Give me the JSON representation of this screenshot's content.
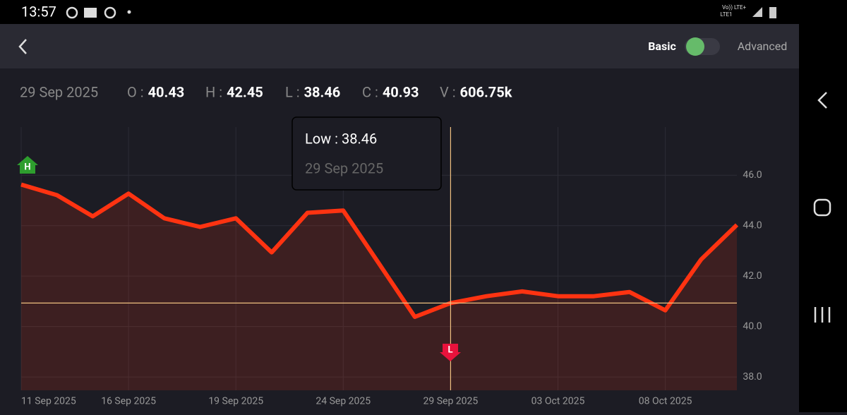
{
  "status_bar": {
    "time": "13:57",
    "network_top": "Vo)) LTE+",
    "network_bottom": "LTE1"
  },
  "header": {
    "basic": "Basic",
    "advanced": "Advanced"
  },
  "ohlc": {
    "date": "29 Sep 2025",
    "items": [
      {
        "label": "O :",
        "value": "40.43"
      },
      {
        "label": "H :",
        "value": "42.45"
      },
      {
        "label": "L :",
        "value": "38.46"
      },
      {
        "label": "C :",
        "value": "40.93"
      },
      {
        "label": "V :",
        "value": "606.75k"
      }
    ]
  },
  "tooltip": {
    "text": "Low : 38.46",
    "date": "29 Sep 2025"
  },
  "chart_data": {
    "type": "area",
    "categories": [
      "11 Sep 2025",
      null,
      null,
      "16 Sep 2025",
      null,
      null,
      "19 Sep 2025",
      null,
      null,
      "24 Sep 2025",
      null,
      null,
      "29 Sep 2025",
      null,
      null,
      "03 Oct 2025",
      null,
      null,
      "08 Oct 2025",
      null,
      null
    ],
    "values": [
      45.63,
      45.21,
      44.37,
      45.27,
      44.29,
      43.95,
      44.29,
      42.94,
      44.51,
      44.6,
      42.49,
      40.38,
      40.93,
      41.2,
      41.39,
      41.2,
      41.2,
      41.37,
      40.64,
      42.66,
      44.03
    ],
    "color": "#ff3311",
    "ylim": [
      37.47,
      47.91
    ],
    "yticks": [
      {
        "value": 38,
        "label": "38.0"
      },
      {
        "value": 40,
        "label": "40.0"
      },
      {
        "value": 42,
        "label": "42.0"
      },
      {
        "value": 44,
        "label": "44.0"
      },
      {
        "value": 46,
        "label": "46.0"
      }
    ],
    "grid": true,
    "high_marker": "H",
    "low_marker": "L"
  }
}
